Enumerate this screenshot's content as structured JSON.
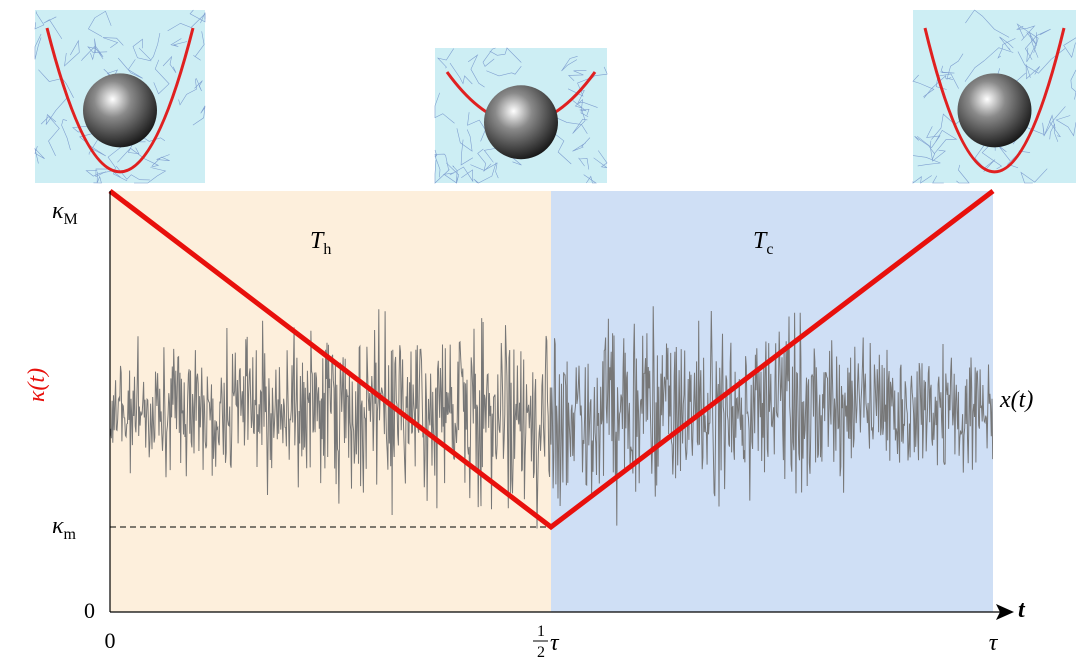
{
  "axes": {
    "y_labels": {
      "top": {
        "symbol": "κ",
        "sub": "M"
      },
      "bottom": {
        "symbol": "κ",
        "sub": "m"
      },
      "zero": "0"
    },
    "x_labels": {
      "start": "0",
      "half": {
        "num": "1",
        "den": "2",
        "symbol": "τ"
      },
      "end": "τ"
    },
    "x_axis": "t",
    "y_axis": "κ(t)"
  },
  "trace_label": "x(t)",
  "regions": {
    "hot": {
      "symbol": "T",
      "sub": "h"
    },
    "cold": {
      "symbol": "T",
      "sub": "c"
    }
  }
}
